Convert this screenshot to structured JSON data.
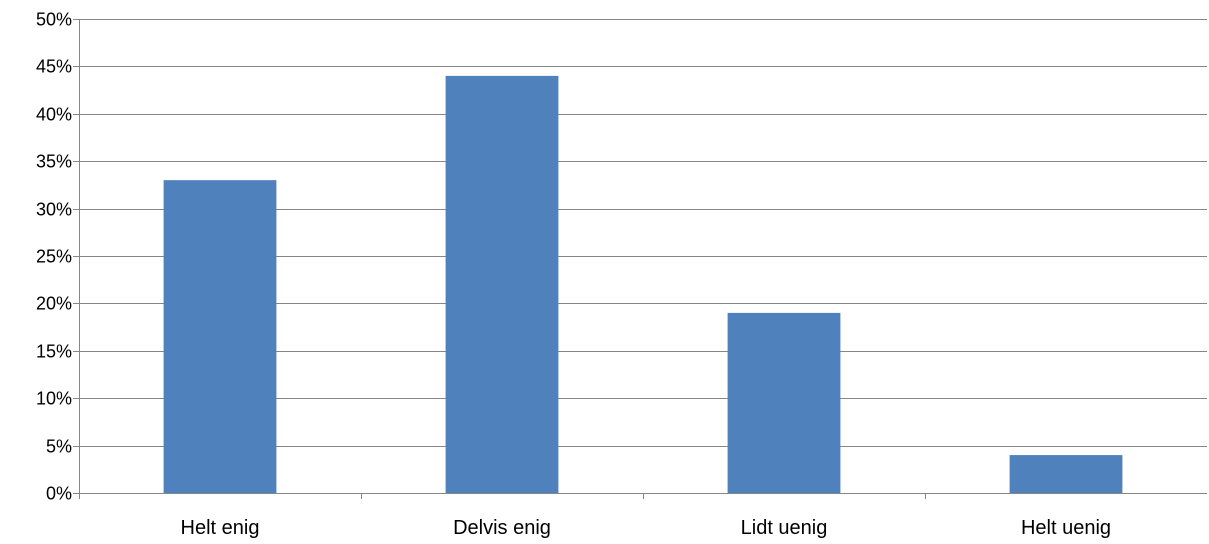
{
  "chart_data": {
    "type": "bar",
    "categories": [
      "Helt enig",
      "Delvis enig",
      "Lidt uenig",
      "Helt uenig"
    ],
    "values": [
      33,
      44,
      19,
      4
    ],
    "ylim": [
      0,
      50
    ],
    "ytick_step": 5,
    "ytick_labels": [
      "0%",
      "5%",
      "10%",
      "15%",
      "20%",
      "25%",
      "30%",
      "35%",
      "40%",
      "45%",
      "50%"
    ],
    "grid": true,
    "legend": "none",
    "bar_color": "#4f81bd",
    "grid_color": "#868686"
  }
}
